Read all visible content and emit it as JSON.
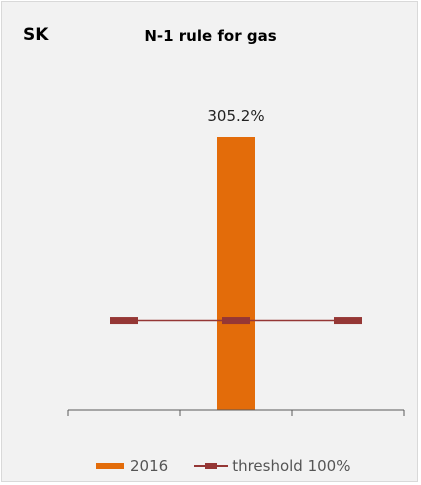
{
  "chart_data": {
    "type": "bar",
    "country": "SK",
    "title": "N-1 rule for gas",
    "categories": [
      ""
    ],
    "series": [
      {
        "name": "2016",
        "kind": "bar",
        "values": [
          305.2
        ],
        "color": "#e36c0a"
      },
      {
        "name": "threshold 100%",
        "kind": "line",
        "values": [
          100
        ],
        "color": "#953735"
      }
    ],
    "data_labels": [
      "305.2%"
    ],
    "ylim": [
      0,
      330
    ],
    "grid": false,
    "legend_position": "bottom"
  }
}
